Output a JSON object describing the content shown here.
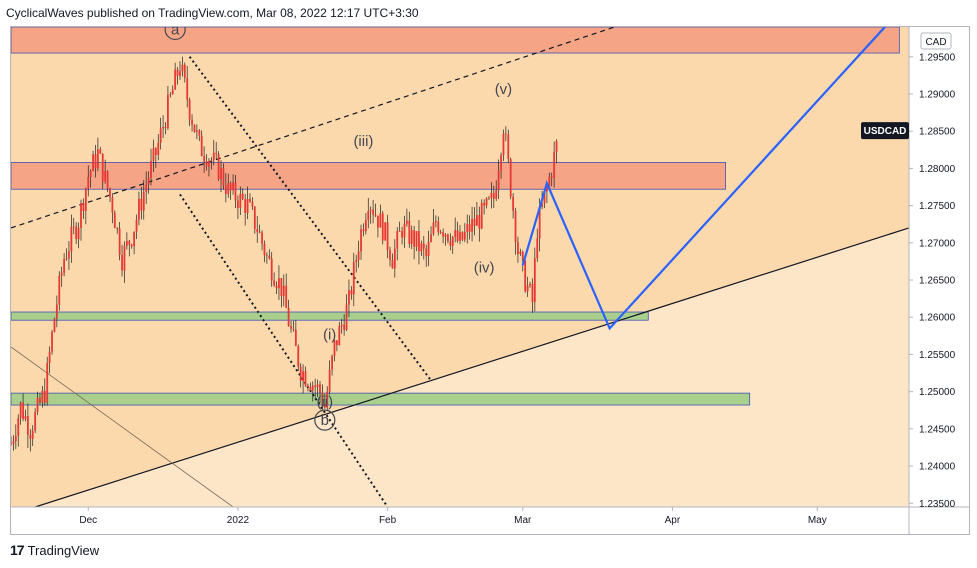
{
  "header": {
    "text": "CyclicalWaves published on TradingView.com, Mar 08, 2022 12:17 UTC+3:30"
  },
  "footer": {
    "logo": "17",
    "brand": "TradingView"
  },
  "colors": {
    "candle": "#e53935",
    "wick": "#202020",
    "resistance_zone": "#f4a184",
    "support_zone_green": "#a5cf8a",
    "impulse_path": "#2962ff",
    "background_upper": "#fcd9ad",
    "background_lower": "#fde5c7"
  },
  "chart_data": {
    "type": "candlestick",
    "symbol": "USDCAD",
    "currency_label": "CAD",
    "y_ticks": [
      "1.29500",
      "1.29000",
      "1.28500",
      "1.28000",
      "1.27500",
      "1.27000",
      "1.26500",
      "1.26000",
      "1.25500",
      "1.25000",
      "1.24500",
      "1.24000",
      "1.23500"
    ],
    "ylim": [
      1.2345,
      1.299
    ],
    "x_ticks": [
      "Dec",
      "2022",
      "Feb",
      "Mar",
      "Apr",
      "May"
    ],
    "x_range": [
      "2021-11-15",
      "2022-05-20"
    ],
    "x_tick_dates": [
      "2021-12-01",
      "2022-01-01",
      "2022-02-01",
      "2022-03-01",
      "2022-04-01",
      "2022-05-01"
    ],
    "last_price_label": "USDCAD",
    "price_path": [
      [
        "2021-11-15",
        1.243
      ],
      [
        "2021-11-17",
        1.248
      ],
      [
        "2021-11-19",
        1.245
      ],
      [
        "2021-11-22",
        1.25
      ],
      [
        "2021-11-24",
        1.26
      ],
      [
        "2021-11-26",
        1.268
      ],
      [
        "2021-11-29",
        1.273
      ],
      [
        "2021-12-01",
        1.279
      ],
      [
        "2021-12-03",
        1.282
      ],
      [
        "2021-12-06",
        1.275
      ],
      [
        "2021-12-08",
        1.268
      ],
      [
        "2021-12-10",
        1.271
      ],
      [
        "2021-12-13",
        1.278
      ],
      [
        "2021-12-15",
        1.282
      ],
      [
        "2021-12-17",
        1.287
      ],
      [
        "2021-12-20",
        1.294
      ],
      [
        "2021-12-22",
        1.288
      ],
      [
        "2021-12-24",
        1.283
      ],
      [
        "2021-12-28",
        1.28
      ],
      [
        "2021-12-30",
        1.277
      ],
      [
        "2022-01-03",
        1.275
      ],
      [
        "2022-01-05",
        1.272
      ],
      [
        "2022-01-07",
        1.268
      ],
      [
        "2022-01-10",
        1.264
      ],
      [
        "2022-01-12",
        1.258
      ],
      [
        "2022-01-14",
        1.253
      ],
      [
        "2022-01-18",
        1.25
      ],
      [
        "2022-01-19",
        1.248
      ],
      [
        "2022-01-21",
        1.256
      ],
      [
        "2022-01-24",
        1.262
      ],
      [
        "2022-01-26",
        1.27
      ],
      [
        "2022-01-28",
        1.276
      ],
      [
        "2022-01-31",
        1.272
      ],
      [
        "2022-02-02",
        1.268
      ],
      [
        "2022-02-04",
        1.272
      ],
      [
        "2022-02-07",
        1.27
      ],
      [
        "2022-02-09",
        1.268
      ],
      [
        "2022-02-11",
        1.273
      ],
      [
        "2022-02-14",
        1.271
      ],
      [
        "2022-02-16",
        1.27
      ],
      [
        "2022-02-18",
        1.272
      ],
      [
        "2022-02-21",
        1.274
      ],
      [
        "2022-02-23",
        1.276
      ],
      [
        "2022-02-25",
        1.286
      ],
      [
        "2022-02-28",
        1.269
      ],
      [
        "2022-03-01",
        1.266
      ],
      [
        "2022-03-03",
        1.262
      ],
      [
        "2022-03-04",
        1.272
      ],
      [
        "2022-03-07",
        1.28
      ],
      [
        "2022-03-08",
        1.283
      ]
    ],
    "zones": [
      {
        "from": "2021-11-15",
        "to": "2022-05-18",
        "low": 1.2955,
        "high": 1.299,
        "color": "#f4a184"
      },
      {
        "from": "2021-11-15",
        "to": "2022-04-12",
        "low": 1.2772,
        "high": 1.2808,
        "color": "#f4a184"
      },
      {
        "from": "2021-11-15",
        "to": "2022-03-27",
        "low": 1.2596,
        "high": 1.2607,
        "color": "#a5cf8a"
      },
      {
        "from": "2021-11-15",
        "to": "2022-04-17",
        "low": 1.2482,
        "high": 1.2498,
        "color": "#a5cf8a"
      }
    ],
    "trend_lines": [
      {
        "style": "dashed",
        "from": [
          "2021-11-15",
          1.272
        ],
        "to": [
          "2022-03-20",
          1.299
        ]
      },
      {
        "style": "solid",
        "from": [
          "2021-11-20",
          1.2345
        ],
        "to": [
          "2022-05-20",
          1.272
        ]
      },
      {
        "style": "dotted",
        "from": [
          "2021-12-22",
          1.295
        ],
        "to": [
          "2022-02-10",
          1.2515
        ]
      },
      {
        "style": "dotted",
        "from": [
          "2021-12-20",
          1.2765
        ],
        "to": [
          "2022-02-01",
          1.2345
        ]
      },
      {
        "style": "thin",
        "from": [
          "2021-11-15",
          1.256
        ],
        "to": [
          "2021-12-31",
          1.2345
        ]
      }
    ],
    "projection_path": [
      [
        "2022-03-01",
        1.267
      ],
      [
        "2022-03-06",
        1.278
      ],
      [
        "2022-03-19",
        1.2585
      ],
      [
        "2022-05-15",
        1.299
      ]
    ],
    "wave_labels": [
      {
        "text": "a",
        "date": "2021-12-19",
        "price": 1.298,
        "circled": true
      },
      {
        "text": "(v)",
        "date": "2022-02-25",
        "price": 1.29
      },
      {
        "text": "(iii)",
        "date": "2022-01-27",
        "price": 1.283
      },
      {
        "text": "(iv)",
        "date": "2022-02-21",
        "price": 1.266
      },
      {
        "text": "(i)",
        "date": "2022-01-20",
        "price": 1.257
      },
      {
        "text": "(ii)",
        "date": "2022-01-19",
        "price": 1.248
      },
      {
        "text": "b",
        "date": "2022-01-19",
        "price": 1.2455,
        "circled": true
      }
    ]
  }
}
